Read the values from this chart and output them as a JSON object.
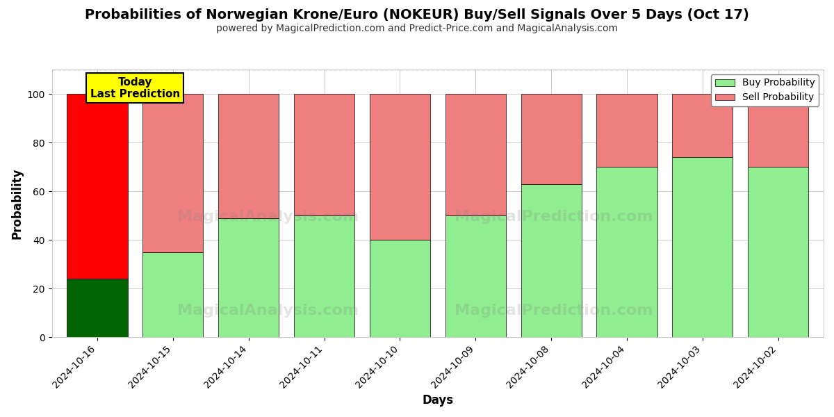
{
  "title": "Probabilities of Norwegian Krone/Euro (NOKEUR) Buy/Sell Signals Over 5 Days (Oct 17)",
  "subtitle": "powered by MagicalPrediction.com and Predict-Price.com and MagicalAnalysis.com",
  "xlabel": "Days",
  "ylabel": "Probability",
  "dates": [
    "2024-10-16",
    "2024-10-15",
    "2024-10-14",
    "2024-10-11",
    "2024-10-10",
    "2024-10-09",
    "2024-10-08",
    "2024-10-04",
    "2024-10-03",
    "2024-10-02"
  ],
  "buy_values": [
    24,
    35,
    49,
    50,
    40,
    50,
    63,
    70,
    74,
    70
  ],
  "sell_values": [
    76,
    65,
    51,
    50,
    60,
    50,
    37,
    30,
    26,
    30
  ],
  "today_bar_index": 0,
  "buy_color_today": "#006400",
  "sell_color_today": "#FF0000",
  "buy_color_other": "#90EE90",
  "sell_color_other": "#F08080",
  "today_label_bg": "#FFFF00",
  "today_label_text": "Today\nLast Prediction",
  "ylim": [
    0,
    110
  ],
  "yticks": [
    0,
    20,
    40,
    60,
    80,
    100
  ],
  "dashed_line_y": 110,
  "legend_labels": [
    "Buy Probability",
    "Sell Probability"
  ],
  "background_color": "#ffffff",
  "grid_color": "#cccccc",
  "bar_edge_color": "#000000",
  "bar_width": 0.8
}
